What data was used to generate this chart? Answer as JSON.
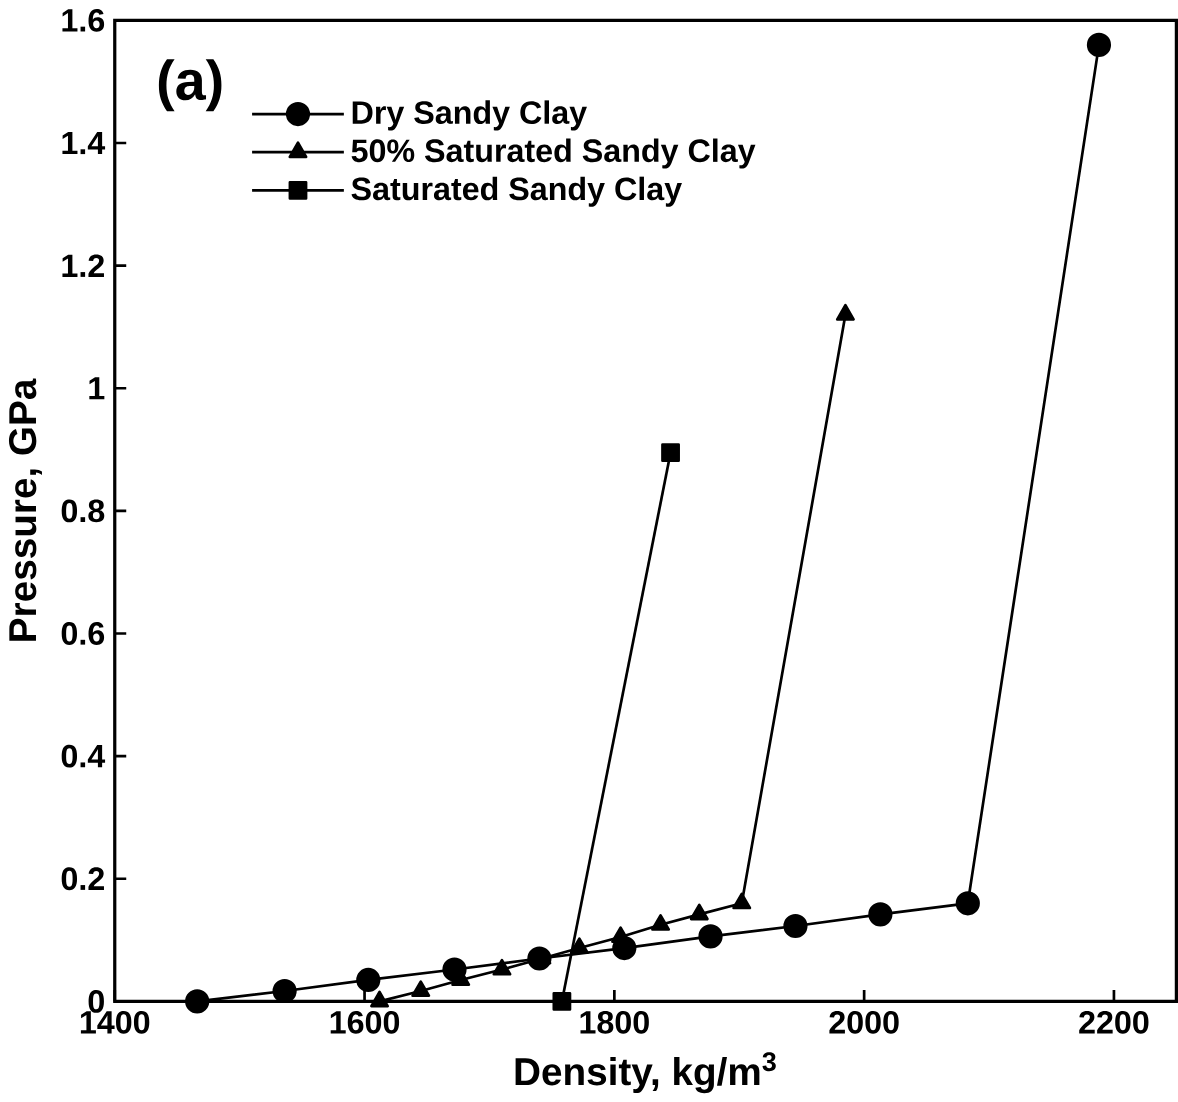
{
  "chart_data": {
    "type": "line",
    "xlabel": "Density, kg/m$^{3}$",
    "ylabel": "Pressure, GPa",
    "annotations": [
      "(a)"
    ],
    "xlim": [
      1400,
      2250
    ],
    "ylim": [
      0,
      1.6
    ],
    "xticks": [
      1400,
      1600,
      1800,
      2000,
      2200
    ],
    "yticks": [
      0,
      0.2,
      0.4,
      0.6,
      0.8,
      1,
      1.2,
      1.4,
      1.6
    ],
    "legend": "top left",
    "grid": false,
    "series": [
      {
        "name": "Dry Sandy Clay",
        "color": "#000000",
        "marker": "circle",
        "x": [
          1466,
          1536,
          1603,
          1672,
          1740,
          1808,
          1877,
          1945,
          2013,
          2083,
          2188
        ],
        "values": [
          0,
          0.017,
          0.035,
          0.052,
          0.07,
          0.087,
          0.106,
          0.123,
          0.142,
          0.16,
          1.56
        ]
      },
      {
        "name": "50% Saturated Sandy Clay",
        "color": "#000000",
        "marker": "triangle",
        "x": [
          1612,
          1645,
          1677,
          1710,
          1742,
          1772,
          1805,
          1837,
          1868,
          1902,
          1985
        ],
        "values": [
          0,
          0.017,
          0.035,
          0.052,
          0.07,
          0.087,
          0.105,
          0.125,
          0.142,
          0.16,
          1.12
        ]
      },
      {
        "name": "Saturated Sandy Clay",
        "color": "#000000",
        "marker": "square",
        "x": [
          1758,
          1845
        ],
        "values": [
          0,
          0.895
        ]
      }
    ]
  }
}
